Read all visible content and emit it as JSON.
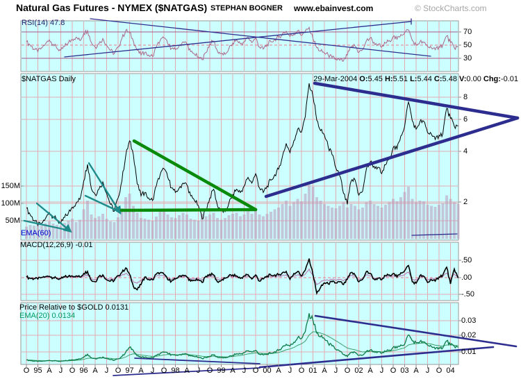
{
  "header": {
    "title": "Natural Gas Futures - NYMEX ($NATGAS)",
    "author": "STEPHAN BOGNER",
    "website": "www.ebainvest.com",
    "copyright": "© StockCharts.com"
  },
  "panels": {
    "rsi": {
      "label": "RSI(14) 47.8",
      "scale_labels": [
        "70",
        "50",
        "30"
      ]
    },
    "price": {
      "label": "$NATGAS Daily",
      "date": "29-Mar-2004",
      "ohlc": [
        {
          "k": "O:",
          "v": "5.45"
        },
        {
          "k": "H:",
          "v": "5.51"
        },
        {
          "k": "L:",
          "v": "5.44"
        },
        {
          "k": "C:",
          "v": "5.48"
        },
        {
          "k": "V:",
          "v": "0.00"
        },
        {
          "k": "Chg:",
          "v": "-0.01"
        }
      ],
      "scale_labels": [
        "8",
        "6",
        "4",
        "2"
      ],
      "volume_scale_labels": [
        "150M",
        "100M",
        "50M"
      ],
      "ema_label": "EMA(60)"
    },
    "macd": {
      "label": "MACD(12,26,9) -0.01",
      "scale_labels": [
        ".50",
        ".00",
        "-.50"
      ]
    },
    "rel": {
      "label": "Price Relative to $GOLD  0.0131",
      "ema_label": "EMA(20) 0.0134",
      "scale_labels": [
        "0.03",
        "0.02",
        "0.01"
      ]
    }
  },
  "x_axis": {
    "tick_labels": [
      "O",
      "95",
      "A",
      "J",
      "O",
      "96",
      "A",
      "J",
      "O",
      "97",
      "A",
      "J",
      "O",
      "98",
      "A",
      "J",
      "O",
      "99",
      "A",
      "J",
      "O",
      "00",
      "A",
      "J",
      "O",
      "01",
      "A",
      "J",
      "O",
      "02",
      "A",
      "J",
      "O",
      "03",
      "A",
      "J",
      "O",
      "04"
    ]
  },
  "colors": {
    "panel_bg": "#ccffff",
    "panel_border": "#999999",
    "grid": "#e3aab0",
    "rsi_line": "#aa6688",
    "rsi_band": "#aa5588",
    "dashed_mid": "#ee7788",
    "navy": "#2d2d8f",
    "teal": "#1f8a8a",
    "green": "#0a8a0a",
    "price_line": "#000000",
    "volume_bar": "#bb99bb",
    "macd_line": "#000000",
    "macd_signal": "#b884b8",
    "rel_line": "#0b7a46",
    "rel_ema": "#3aa06a",
    "tick_mark": "#888888"
  },
  "chart_data": {
    "x": {
      "start": "Oct-1994",
      "end": "Mar-2004",
      "interval": "monthly",
      "tick_interval": "quarterly"
    },
    "rsi": {
      "type": "line",
      "label": "RSI(14)",
      "current": 47.8,
      "ylim": [
        0,
        100
      ],
      "yticks": [
        70,
        50,
        30
      ],
      "values": [
        55,
        50,
        44,
        40,
        46,
        52,
        58,
        51,
        45,
        42,
        48,
        54,
        59,
        62,
        57,
        68,
        72,
        54,
        47,
        52,
        60,
        50,
        42,
        37,
        47,
        60,
        72,
        69,
        56,
        42,
        35,
        39,
        35,
        33,
        47,
        57,
        61,
        52,
        45,
        43,
        49,
        55,
        52,
        40,
        36,
        32,
        28,
        39,
        52,
        56,
        41,
        37,
        36,
        45,
        53,
        58,
        52,
        55,
        62,
        54,
        61,
        47,
        44,
        51,
        55,
        59,
        62,
        67,
        71,
        63,
        67,
        72,
        65,
        71,
        77,
        60,
        46,
        41,
        38,
        35,
        31,
        29,
        27,
        26,
        35,
        47,
        49,
        39,
        43,
        57,
        61,
        54,
        51,
        47,
        53,
        57,
        63,
        59,
        66,
        69,
        73,
        57,
        50,
        55,
        54,
        48,
        46,
        43,
        48,
        50,
        64,
        54,
        46,
        47.8
      ]
    },
    "price": {
      "type": "line",
      "label": "$NATGAS",
      "yscale": "log",
      "yticks": [
        8,
        6,
        4,
        2
      ],
      "values": [
        1.85,
        1.7,
        1.58,
        1.48,
        1.52,
        1.62,
        1.75,
        1.66,
        1.58,
        1.52,
        1.64,
        1.74,
        1.88,
        1.98,
        2.08,
        2.65,
        3.3,
        2.4,
        2.22,
        2.38,
        2.62,
        2.25,
        1.95,
        1.78,
        2.12,
        2.65,
        3.7,
        4.5,
        3.75,
        2.55,
        2.18,
        2.28,
        2.12,
        2.05,
        2.48,
        2.88,
        3.12,
        2.78,
        2.42,
        2.28,
        2.42,
        2.58,
        2.52,
        2.18,
        2.05,
        1.92,
        1.61,
        1.82,
        2.12,
        2.38,
        1.92,
        1.8,
        1.77,
        1.98,
        2.22,
        2.38,
        2.28,
        2.48,
        2.78,
        2.58,
        2.92,
        2.42,
        2.28,
        2.48,
        2.68,
        2.88,
        3.1,
        3.65,
        4.35,
        3.85,
        4.5,
        5.25,
        5.05,
        6.2,
        9.6,
        8.1,
        5.9,
        5.15,
        4.85,
        4.15,
        3.75,
        3.15,
        2.85,
        2.25,
        1.95,
        2.65,
        2.7,
        2.2,
        2.32,
        3.12,
        3.42,
        3.22,
        3.18,
        2.92,
        3.28,
        3.58,
        4.12,
        4.05,
        4.8,
        5.45,
        7.5,
        5.85,
        5.25,
        5.8,
        5.82,
        5.02,
        4.92,
        4.58,
        4.85,
        4.95,
        6.9,
        6.05,
        5.45,
        5.48
      ]
    },
    "volume": {
      "type": "bar",
      "label": "Volume",
      "yticks_millions": [
        150,
        100,
        50
      ],
      "values_millions": [
        35,
        40,
        38,
        42,
        38,
        45,
        50,
        44,
        40,
        38,
        46,
        52,
        58,
        48,
        55,
        85,
        110,
        70,
        60,
        65,
        72,
        58,
        50,
        48,
        62,
        88,
        120,
        130,
        95,
        75,
        60,
        58,
        55,
        52,
        64,
        78,
        85,
        70,
        62,
        60,
        68,
        75,
        70,
        58,
        55,
        52,
        72,
        65,
        70,
        75,
        60,
        55,
        60,
        68,
        72,
        75,
        65,
        70,
        85,
        72,
        88,
        70,
        65,
        72,
        78,
        85,
        90,
        100,
        110,
        95,
        105,
        115,
        108,
        130,
        155,
        150,
        120,
        110,
        100,
        95,
        90,
        88,
        95,
        105,
        90,
        100,
        95,
        85,
        90,
        105,
        110,
        100,
        95,
        90,
        98,
        105,
        115,
        108,
        120,
        135,
        150,
        115,
        105,
        110,
        108,
        98,
        95,
        92,
        98,
        102,
        125,
        115,
        105,
        100
      ]
    },
    "macd": {
      "type": "line",
      "label": "MACD(12,26,9)",
      "current": -0.01,
      "yticks": [
        0.5,
        0.0,
        -0.5
      ],
      "values": [
        0.02,
        -0.02,
        -0.03,
        -0.04,
        0.01,
        0.03,
        0.04,
        0.0,
        -0.03,
        -0.03,
        0.02,
        0.04,
        0.05,
        0.05,
        0.02,
        0.12,
        0.18,
        -0.08,
        -0.12,
        0.04,
        0.08,
        -0.06,
        -0.1,
        -0.08,
        0.06,
        0.15,
        0.28,
        0.1,
        -0.25,
        -0.35,
        -0.2,
        0.02,
        -0.05,
        -0.06,
        0.1,
        0.14,
        0.1,
        -0.06,
        -0.1,
        -0.04,
        0.05,
        0.07,
        0.02,
        -0.1,
        -0.08,
        -0.06,
        -0.14,
        0.04,
        0.1,
        0.08,
        -0.12,
        -0.08,
        -0.02,
        0.06,
        0.08,
        0.05,
        -0.02,
        0.05,
        0.09,
        -0.04,
        0.08,
        -0.1,
        -0.04,
        0.05,
        0.07,
        0.08,
        0.08,
        0.14,
        0.18,
        -0.05,
        0.12,
        0.18,
        0.05,
        0.22,
        0.55,
        0.1,
        -0.45,
        -0.28,
        -0.15,
        -0.18,
        -0.12,
        -0.15,
        -0.12,
        -0.2,
        -0.05,
        0.15,
        0.08,
        -0.12,
        -0.05,
        0.18,
        0.12,
        -0.04,
        -0.02,
        -0.06,
        0.06,
        0.08,
        0.12,
        0.02,
        0.14,
        0.2,
        0.35,
        -0.12,
        -0.16,
        0.06,
        0.04,
        -0.14,
        -0.06,
        -0.1,
        0.02,
        0.08,
        0.3,
        -0.18,
        0.25,
        -0.01
      ]
    },
    "price_relative_gold": {
      "type": "line",
      "label": "Price Relative to $GOLD",
      "current": 0.0131,
      "ema20_current": 0.0134,
      "yticks": [
        0.03,
        0.02,
        0.01
      ],
      "values": [
        0.0048,
        0.0044,
        0.0041,
        0.0038,
        0.004,
        0.0042,
        0.0045,
        0.0043,
        0.0041,
        0.0039,
        0.0042,
        0.0045,
        0.0049,
        0.0051,
        0.0054,
        0.0068,
        0.0085,
        0.0062,
        0.0057,
        0.0061,
        0.0067,
        0.0058,
        0.005,
        0.0046,
        0.0055,
        0.007,
        0.0098,
        0.013,
        0.011,
        0.0074,
        0.0064,
        0.0066,
        0.0062,
        0.0063,
        0.0076,
        0.0089,
        0.0098,
        0.009,
        0.0082,
        0.0078,
        0.0082,
        0.0087,
        0.0085,
        0.0074,
        0.007,
        0.0066,
        0.0057,
        0.0064,
        0.0072,
        0.0081,
        0.0066,
        0.0063,
        0.0062,
        0.007,
        0.0078,
        0.0088,
        0.0087,
        0.0096,
        0.0108,
        0.01,
        0.011,
        0.0085,
        0.008,
        0.0087,
        0.0091,
        0.0102,
        0.011,
        0.0132,
        0.015,
        0.0138,
        0.0163,
        0.0192,
        0.0187,
        0.0232,
        0.035,
        0.0305,
        0.0222,
        0.0198,
        0.0186,
        0.0155,
        0.0139,
        0.0117,
        0.0105,
        0.0082,
        0.007,
        0.0096,
        0.0097,
        0.0078,
        0.0079,
        0.0104,
        0.0112,
        0.0103,
        0.01,
        0.0092,
        0.0104,
        0.0112,
        0.0131,
        0.0126,
        0.0146,
        0.015,
        0.021,
        0.0172,
        0.016,
        0.0167,
        0.0163,
        0.0144,
        0.0136,
        0.012,
        0.0128,
        0.0127,
        0.0172,
        0.0146,
        0.0136,
        0.0131
      ]
    }
  },
  "annotations": [
    {
      "name": "rsi-upper-trendline",
      "color": "navy",
      "w": 1.3,
      "pts": [
        [
          130,
          27
        ],
        [
          620,
          81
        ]
      ]
    },
    {
      "name": "rsi-lower-trendline",
      "color": "navy",
      "w": 1.3,
      "pts": [
        [
          93,
          82
        ],
        [
          592,
          31
        ]
      ]
    },
    {
      "name": "rsi-trendline-end-tick",
      "color": "navy",
      "w": 1.3,
      "pts": [
        [
          592,
          27
        ],
        [
          592,
          35
        ]
      ]
    },
    {
      "name": "teal-wedge1-upper",
      "color": "teal",
      "w": 2.4,
      "arrow": true,
      "pts": [
        [
          53,
          293
        ],
        [
          100,
          332
        ]
      ]
    },
    {
      "name": "teal-wedge1-lower",
      "color": "teal",
      "w": 2.4,
      "pts": [
        [
          35,
          318
        ],
        [
          100,
          332
        ]
      ]
    },
    {
      "name": "teal-wedge2-upper",
      "color": "teal",
      "w": 2.4,
      "arrow": true,
      "pts": [
        [
          128,
          235
        ],
        [
          172,
          305
        ]
      ]
    },
    {
      "name": "teal-wedge2-lower",
      "color": "teal",
      "w": 2.4,
      "pts": [
        [
          123,
          282
        ],
        [
          172,
          305
        ]
      ]
    },
    {
      "name": "green-triangle-resistance",
      "color": "green",
      "w": 4.5,
      "pts": [
        [
          193,
          203
        ],
        [
          368,
          302
        ]
      ]
    },
    {
      "name": "green-triangle-support",
      "color": "green",
      "w": 4.5,
      "pts": [
        [
          175,
          303
        ],
        [
          368,
          302
        ]
      ]
    },
    {
      "name": "navy-triangle-resistance",
      "color": "navy",
      "w": 4.5,
      "pts": [
        [
          453,
          120
        ],
        [
          745,
          170
        ]
      ]
    },
    {
      "name": "navy-triangle-support",
      "color": "navy",
      "w": 4.5,
      "pts": [
        [
          383,
          283
        ],
        [
          745,
          170
        ]
      ]
    },
    {
      "name": "navy-flat-segment",
      "color": "navy",
      "w": 1.3,
      "pts": [
        [
          593,
          339
        ],
        [
          658,
          337
        ]
      ]
    },
    {
      "name": "rel-wedge1-upper",
      "color": "navy",
      "w": 1.8,
      "pts": [
        [
          194,
          516
        ],
        [
          374,
          524
        ]
      ]
    },
    {
      "name": "rel-wedge1-lower",
      "color": "navy",
      "w": 1.8,
      "pts": [
        [
          163,
          541
        ],
        [
          374,
          530
        ]
      ]
    },
    {
      "name": "rel-descending-trendline",
      "color": "navy",
      "w": 2.6,
      "pts": [
        [
          454,
          455
        ],
        [
          743,
          499
        ]
      ]
    },
    {
      "name": "rel-support-trendline",
      "color": "navy",
      "w": 2.6,
      "pts": [
        [
          374,
          529
        ],
        [
          710,
          500
        ]
      ]
    }
  ]
}
